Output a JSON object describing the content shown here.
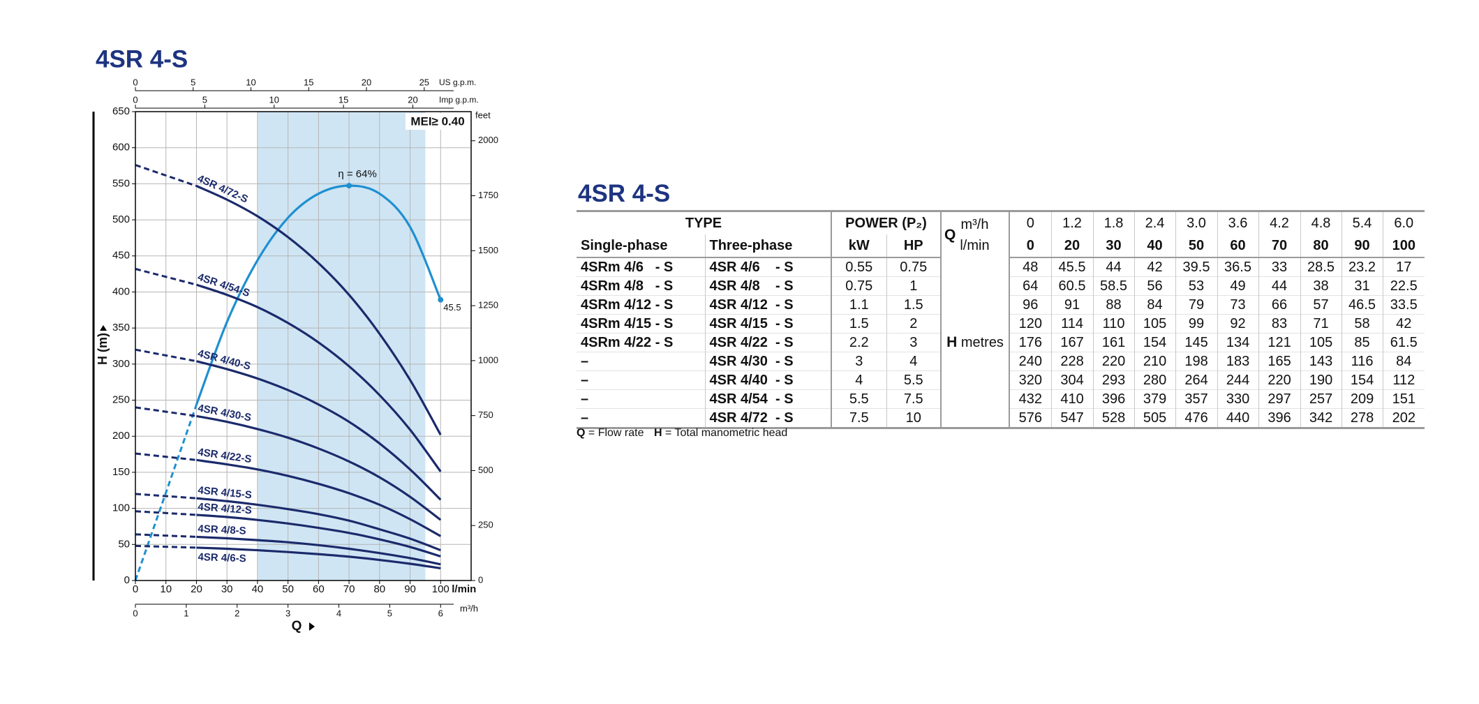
{
  "chart_data": {
    "type": "line",
    "title": "4SR 4-S",
    "x_label": "Q",
    "y_label": "H (m)",
    "x_unit": "l/min",
    "m3h_unit": "m³/h",
    "feet_label": "feet",
    "us_gpm_label": "US g.p.m.",
    "imp_gpm_label": "Imp g.p.m.",
    "note": "MEI≥ 0.40",
    "x": [
      0,
      20,
      30,
      40,
      50,
      60,
      70,
      80,
      90,
      100
    ],
    "xlim": [
      0,
      110
    ],
    "xticks": [
      0,
      10,
      20,
      30,
      40,
      50,
      60,
      70,
      80,
      90,
      100
    ],
    "ylim": [
      0,
      650
    ],
    "yticks": [
      0,
      50,
      100,
      150,
      200,
      250,
      300,
      350,
      400,
      450,
      500,
      550,
      600,
      650
    ],
    "m3h_lim": [
      0,
      6.6
    ],
    "m3h_ticks": [
      0,
      1,
      2,
      3,
      4,
      5,
      6
    ],
    "feet_lim": [
      0,
      2132.5
    ],
    "feet_ticks": [
      0,
      250,
      500,
      750,
      1000,
      1250,
      1500,
      1750,
      2000
    ],
    "us_gpm_lim": [
      0,
      29.06
    ],
    "us_gpm_ticks": [
      0,
      5,
      10,
      15,
      20,
      25
    ],
    "imp_gpm_lim": [
      0,
      24.2
    ],
    "imp_gpm_ticks": [
      0,
      5,
      10,
      15,
      20
    ],
    "shaded_x": [
      40,
      95
    ],
    "grid": true,
    "series": [
      {
        "name": "4SR 4/6-S",
        "color": "#1b2a6b",
        "values": [
          48,
          45.5,
          44,
          42,
          39.5,
          36.5,
          33,
          28.5,
          23.2,
          17
        ]
      },
      {
        "name": "4SR 4/8-S",
        "color": "#1b2a6b",
        "values": [
          64,
          60.5,
          58.5,
          56,
          53,
          49,
          44,
          38,
          31,
          22.5
        ]
      },
      {
        "name": "4SR 4/12-S",
        "color": "#1b2a6b",
        "values": [
          96,
          91,
          88,
          84,
          79,
          73,
          66,
          57,
          46.5,
          33.5
        ]
      },
      {
        "name": "4SR 4/15-S",
        "color": "#1b2a6b",
        "values": [
          120,
          114,
          110,
          105,
          99,
          92,
          83,
          71,
          58,
          42
        ]
      },
      {
        "name": "4SR 4/22-S",
        "color": "#1b2a6b",
        "values": [
          176,
          167,
          161,
          154,
          145,
          134,
          121,
          105,
          85,
          61.5
        ]
      },
      {
        "name": "4SR 4/30-S",
        "color": "#1b2a6b",
        "values": [
          240,
          228,
          220,
          210,
          198,
          183,
          165,
          143,
          116,
          84
        ]
      },
      {
        "name": "4SR 4/40-S",
        "color": "#1b2a6b",
        "values": [
          320,
          304,
          293,
          280,
          264,
          244,
          220,
          190,
          154,
          112
        ]
      },
      {
        "name": "4SR 4/54-S",
        "color": "#1b2a6b",
        "values": [
          432,
          410,
          396,
          379,
          357,
          330,
          297,
          257,
          209,
          151
        ]
      },
      {
        "name": "4SR 4/72-S",
        "color": "#1b2a6b",
        "values": [
          576,
          547,
          528,
          505,
          476,
          440,
          396,
          342,
          278,
          202
        ]
      }
    ],
    "y2lim": [
      0,
      76
    ],
    "efficiency": {
      "axis": "y2",
      "color": "#1f8fd0",
      "peak_label": "η = 64%",
      "values": [
        0,
        28.5,
        41.9,
        51.9,
        58.8,
        62.7,
        64,
        62.7,
        57.3,
        45.5
      ]
    }
  },
  "table": {
    "title": "4SR 4-S",
    "header": {
      "type": "TYPE",
      "power": "POWER (P₂)",
      "single": "Single-phase",
      "three": "Three-phase",
      "kw": "kW",
      "hp": "HP",
      "q": "Q",
      "m3h": "m³/h",
      "lmin": "l/min",
      "h": "H",
      "metres": "metres",
      "flow_m3h": [
        "0",
        "1.2",
        "1.8",
        "2.4",
        "3.0",
        "3.6",
        "4.2",
        "4.8",
        "5.4",
        "6.0"
      ],
      "flow_lmin": [
        "0",
        "20",
        "30",
        "40",
        "50",
        "60",
        "70",
        "80",
        "90",
        "100"
      ]
    },
    "rows": [
      {
        "single": "4SRm 4/6   - S",
        "three": "4SR 4/6    - S",
        "kw": "0.55",
        "hp": "0.75",
        "h": [
          "48",
          "45.5",
          "44",
          "42",
          "39.5",
          "36.5",
          "33",
          "28.5",
          "23.2",
          "17"
        ]
      },
      {
        "single": "4SRm 4/8   - S",
        "three": "4SR 4/8    - S",
        "kw": "0.75",
        "hp": "1",
        "h": [
          "64",
          "60.5",
          "58.5",
          "56",
          "53",
          "49",
          "44",
          "38",
          "31",
          "22.5"
        ]
      },
      {
        "single": "4SRm 4/12 - S",
        "three": "4SR 4/12  - S",
        "kw": "1.1",
        "hp": "1.5",
        "h": [
          "96",
          "91",
          "88",
          "84",
          "79",
          "73",
          "66",
          "57",
          "46.5",
          "33.5"
        ]
      },
      {
        "single": "4SRm 4/15 - S",
        "three": "4SR 4/15  - S",
        "kw": "1.5",
        "hp": "2",
        "h": [
          "120",
          "114",
          "110",
          "105",
          "99",
          "92",
          "83",
          "71",
          "58",
          "42"
        ]
      },
      {
        "single": "4SRm 4/22 - S",
        "three": "4SR 4/22  - S",
        "kw": "2.2",
        "hp": "3",
        "h": [
          "176",
          "167",
          "161",
          "154",
          "145",
          "134",
          "121",
          "105",
          "85",
          "61.5"
        ]
      },
      {
        "single": "–",
        "three": "4SR 4/30  - S",
        "kw": "3",
        "hp": "4",
        "h": [
          "240",
          "228",
          "220",
          "210",
          "198",
          "183",
          "165",
          "143",
          "116",
          "84"
        ]
      },
      {
        "single": "–",
        "three": "4SR 4/40  - S",
        "kw": "4",
        "hp": "5.5",
        "h": [
          "320",
          "304",
          "293",
          "280",
          "264",
          "244",
          "220",
          "190",
          "154",
          "112"
        ]
      },
      {
        "single": "–",
        "three": "4SR 4/54  - S",
        "kw": "5.5",
        "hp": "7.5",
        "h": [
          "432",
          "410",
          "396",
          "379",
          "357",
          "330",
          "297",
          "257",
          "209",
          "151"
        ]
      },
      {
        "single": "–",
        "three": "4SR 4/72  - S",
        "kw": "7.5",
        "hp": "10",
        "h": [
          "576",
          "547",
          "528",
          "505",
          "476",
          "440",
          "396",
          "342",
          "278",
          "202"
        ]
      }
    ],
    "footnote": [
      "Q",
      "= Flow rate",
      "H",
      "= Total manometric head"
    ]
  }
}
